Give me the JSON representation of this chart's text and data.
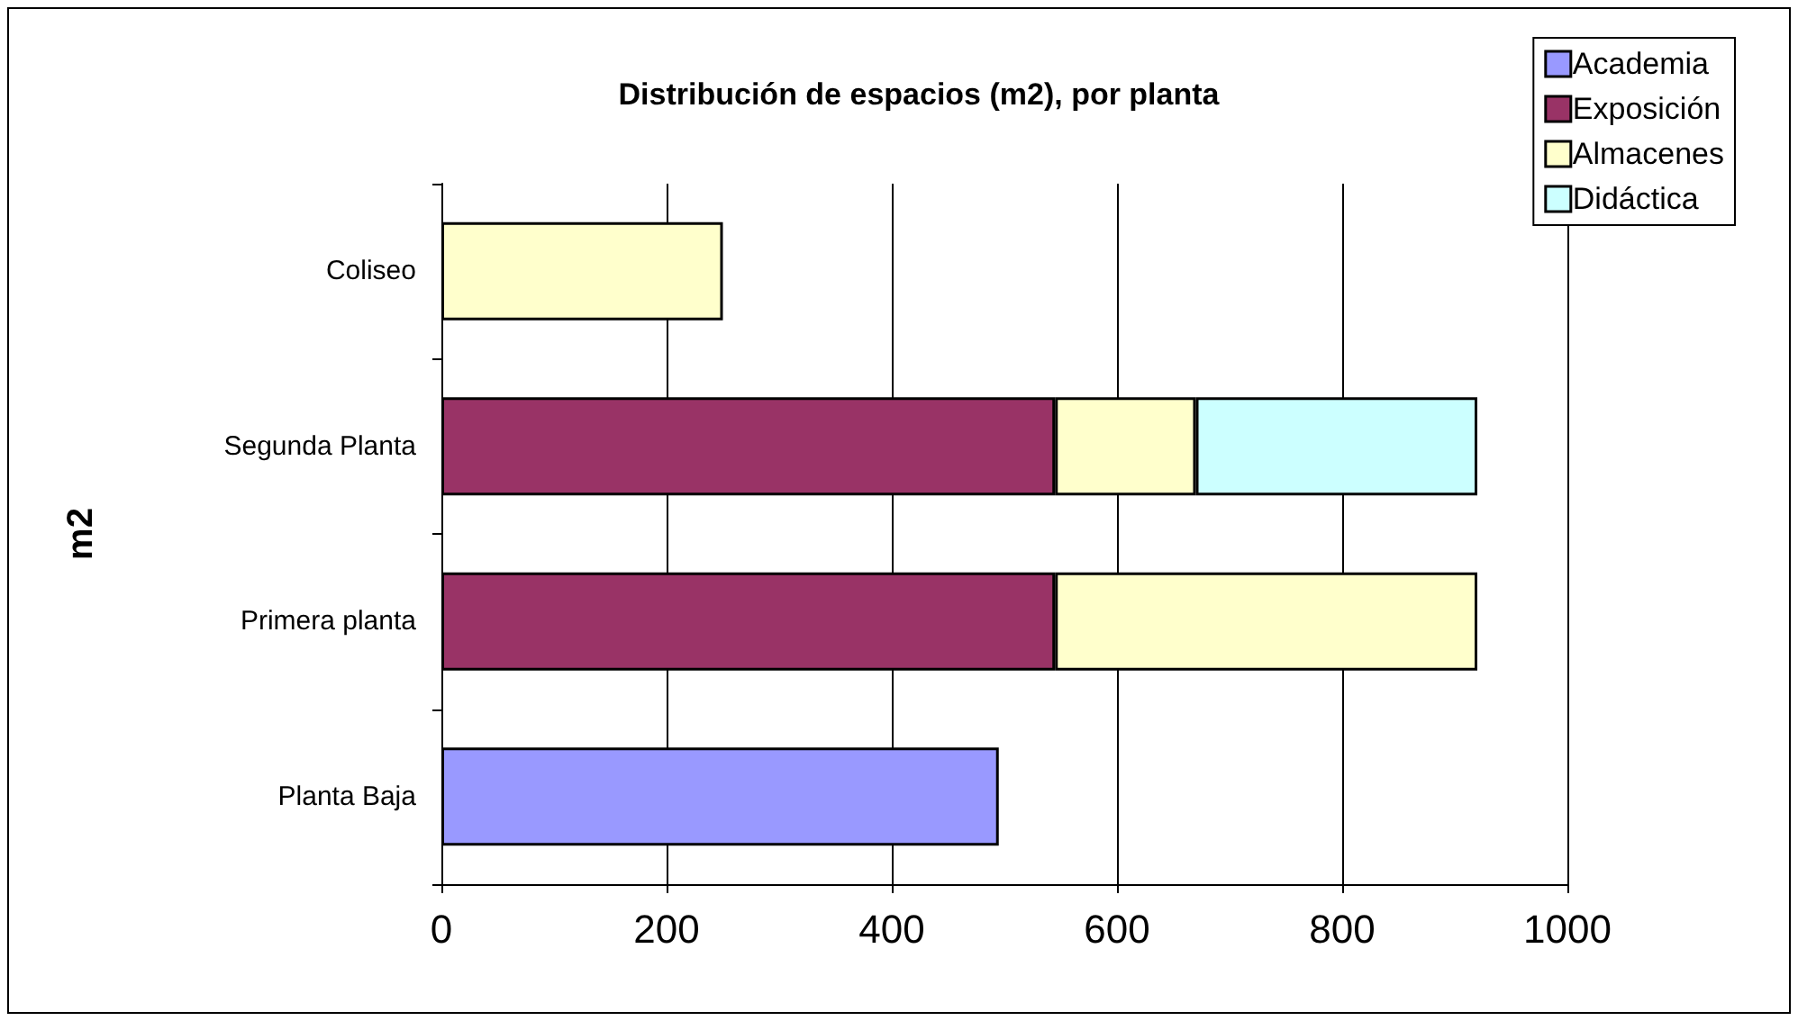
{
  "chart_data": {
    "type": "bar",
    "title": "Distribución de espacios (m2), por planta",
    "ylabel": "m2",
    "orientation": "horizontal",
    "stacked": true,
    "categories": [
      "Coliseo",
      "Segunda Planta",
      "Primera planta",
      "Planta Baja"
    ],
    "series": [
      {
        "name": "Academia",
        "color": "#9999ff",
        "values": [
          null,
          null,
          null,
          495
        ]
      },
      {
        "name": "Exposición",
        "color": "#993366",
        "values": [
          null,
          545,
          545,
          null
        ]
      },
      {
        "name": "Almacenes",
        "color": "#ffffcc",
        "values": [
          250,
          125,
          375,
          null
        ]
      },
      {
        "name": "Didáctica",
        "color": "#ccffff",
        "values": [
          null,
          250,
          null,
          null
        ]
      }
    ],
    "xlim": [
      0,
      1000
    ],
    "xticks": [
      0,
      200,
      400,
      600,
      800,
      1000
    ],
    "grid": "x",
    "legend": "top right"
  }
}
